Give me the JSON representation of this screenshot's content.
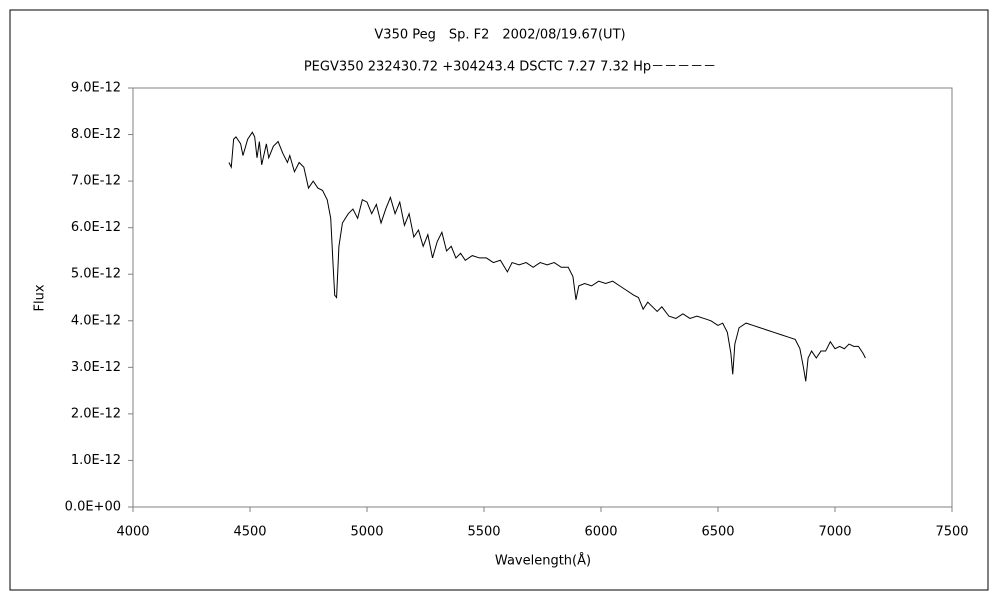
{
  "chart_data": {
    "type": "line",
    "title": "V350 Peg　Sp. F2　2002/08/19.67(UT)",
    "subtitle": "PEGV350 232430.72 +304243.4 DSCTC 7.27 7.32 Hp－－－－－",
    "xlabel": "Wavelength(Å)",
    "ylabel": "Flux",
    "xlim": [
      4000,
      7500
    ],
    "xticks": [
      4000,
      4500,
      5000,
      5500,
      6000,
      6500,
      7000,
      7500
    ],
    "ylim": [
      0,
      9e-12
    ],
    "yticks": [
      {
        "value": 0,
        "label": "0.0E+00"
      },
      {
        "value": 1e-12,
        "label": "1.0E-12"
      },
      {
        "value": 2e-12,
        "label": "2.0E-12"
      },
      {
        "value": 3e-12,
        "label": "3.0E-12"
      },
      {
        "value": 4e-12,
        "label": "4.0E-12"
      },
      {
        "value": 5e-12,
        "label": "5.0E-12"
      },
      {
        "value": 6e-12,
        "label": "6.0E-12"
      },
      {
        "value": 7e-12,
        "label": "7.0E-12"
      },
      {
        "value": 8e-12,
        "label": "8.0E-12"
      },
      {
        "value": 9e-12,
        "label": "9.0E-12"
      }
    ],
    "color": "#000000",
    "x": [
      4410,
      4420,
      4430,
      4440,
      4460,
      4470,
      4490,
      4510,
      4520,
      4530,
      4540,
      4550,
      4570,
      4580,
      4600,
      4620,
      4640,
      4660,
      4670,
      4690,
      4710,
      4730,
      4750,
      4770,
      4790,
      4810,
      4830,
      4845,
      4855,
      4862,
      4870,
      4880,
      4895,
      4920,
      4940,
      4960,
      4980,
      5000,
      5020,
      5040,
      5060,
      5080,
      5100,
      5120,
      5140,
      5160,
      5180,
      5200,
      5220,
      5240,
      5260,
      5280,
      5300,
      5320,
      5340,
      5360,
      5380,
      5400,
      5420,
      5450,
      5480,
      5510,
      5540,
      5570,
      5600,
      5620,
      5650,
      5680,
      5710,
      5740,
      5770,
      5800,
      5830,
      5860,
      5880,
      5893,
      5905,
      5930,
      5960,
      5990,
      6020,
      6050,
      6080,
      6110,
      6140,
      6160,
      6180,
      6200,
      6220,
      6240,
      6260,
      6290,
      6320,
      6350,
      6380,
      6410,
      6440,
      6470,
      6500,
      6520,
      6540,
      6555,
      6563,
      6572,
      6590,
      6620,
      6650,
      6680,
      6710,
      6740,
      6770,
      6800,
      6830,
      6850,
      6865,
      6875,
      6885,
      6900,
      6920,
      6940,
      6960,
      6980,
      7000,
      7020,
      7040,
      7060,
      7080,
      7100,
      7120,
      7130
    ],
    "values": [
      7.4e-12,
      7.3e-12,
      7.9e-12,
      7.95e-12,
      7.8e-12,
      7.55e-12,
      7.9e-12,
      8.05e-12,
      7.95e-12,
      7.5e-12,
      7.85e-12,
      7.35e-12,
      7.8e-12,
      7.5e-12,
      7.75e-12,
      7.85e-12,
      7.6e-12,
      7.4e-12,
      7.55e-12,
      7.2e-12,
      7.4e-12,
      7.3e-12,
      6.85e-12,
      7e-12,
      6.85e-12,
      6.8e-12,
      6.6e-12,
      6.2e-12,
      5.2e-12,
      4.55e-12,
      4.5e-12,
      5.6e-12,
      6.1e-12,
      6.3e-12,
      6.4e-12,
      6.2e-12,
      6.6e-12,
      6.55e-12,
      6.3e-12,
      6.5e-12,
      6.1e-12,
      6.4e-12,
      6.65e-12,
      6.3e-12,
      6.55e-12,
      6.05e-12,
      6.3e-12,
      5.8e-12,
      5.95e-12,
      5.6e-12,
      5.85e-12,
      5.35e-12,
      5.7e-12,
      5.9e-12,
      5.5e-12,
      5.6e-12,
      5.35e-12,
      5.45e-12,
      5.3e-12,
      5.4e-12,
      5.35e-12,
      5.35e-12,
      5.25e-12,
      5.3e-12,
      5.05e-12,
      5.25e-12,
      5.2e-12,
      5.25e-12,
      5.15e-12,
      5.25e-12,
      5.2e-12,
      5.25e-12,
      5.15e-12,
      5.15e-12,
      4.95e-12,
      4.45e-12,
      4.75e-12,
      4.8e-12,
      4.75e-12,
      4.85e-12,
      4.8e-12,
      4.85e-12,
      4.75e-12,
      4.65e-12,
      4.55e-12,
      4.5e-12,
      4.25e-12,
      4.4e-12,
      4.3e-12,
      4.2e-12,
      4.3e-12,
      4.1e-12,
      4.05e-12,
      4.15e-12,
      4.05e-12,
      4.1e-12,
      4.05e-12,
      4e-12,
      3.9e-12,
      3.95e-12,
      3.75e-12,
      3.3e-12,
      2.85e-12,
      3.5e-12,
      3.85e-12,
      3.95e-12,
      3.9e-12,
      3.85e-12,
      3.8e-12,
      3.75e-12,
      3.7e-12,
      3.65e-12,
      3.6e-12,
      3.4e-12,
      3e-12,
      2.7e-12,
      3.2e-12,
      3.35e-12,
      3.2e-12,
      3.35e-12,
      3.35e-12,
      3.55e-12,
      3.4e-12,
      3.45e-12,
      3.4e-12,
      3.5e-12,
      3.45e-12,
      3.45e-12,
      3.3e-12,
      3.2e-12
    ]
  }
}
